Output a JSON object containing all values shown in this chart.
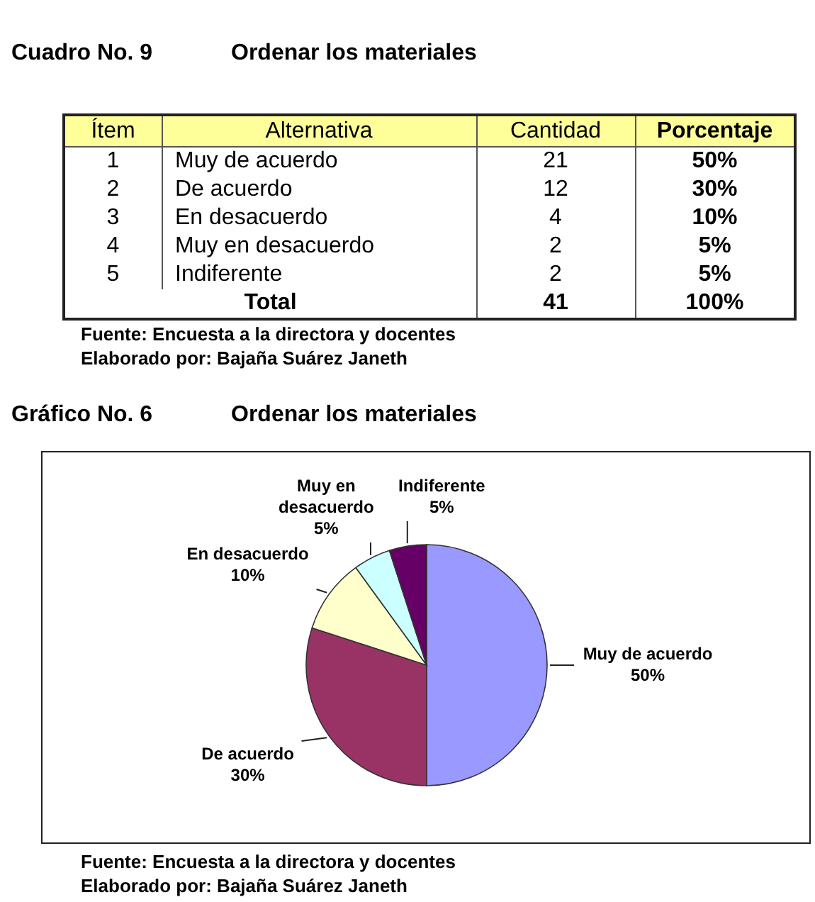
{
  "chart_data": [
    {
      "type": "other",
      "title": "Cuadro No. 9",
      "subtitle": "Ordenar los materiales",
      "xlabel": "Alternativa",
      "categories": [
        "Muy de acuerdo",
        "De acuerdo",
        "En desacuerdo",
        "Muy en desacuerdo",
        "Indiferente"
      ],
      "series": [
        {
          "name": "Ítem",
          "values": [
            1,
            2,
            3,
            4,
            5
          ]
        },
        {
          "name": "Cantidad",
          "values": [
            21,
            12,
            4,
            2,
            2
          ]
        },
        {
          "name": "Porcentaje",
          "values": [
            50,
            30,
            10,
            5,
            5
          ],
          "value_labels": [
            "50%",
            "30%",
            "10%",
            "5%",
            "5%"
          ]
        }
      ],
      "data_labels": true,
      "totals": [
        null,
        "41",
        "100%"
      ],
      "annotations": [
        "Total",
        "Fuente: Encuesta a la directora y docentes",
        "Elaborado por: Bajaña Suárez Janeth"
      ]
    },
    {
      "type": "pie",
      "title": "Gráfico No. 6",
      "subtitle": "Ordenar los materiales",
      "categories": [
        "Muy de acuerdo",
        "De acuerdo",
        "En desacuerdo",
        "Muy en desacuerdo",
        "Indiferente"
      ],
      "values": [
        50,
        30,
        10,
        5,
        5
      ],
      "colors": [
        "#9999ff",
        "#993366",
        "#ffffcc",
        "#ccffff",
        "#660066"
      ],
      "value_labels": [
        "50%",
        "30%",
        "10%",
        "5%",
        "5%"
      ],
      "annotations": [
        "Fuente: Encuesta a la directora y docentes",
        "Elaborado por: Bajaña Suárez Janeth"
      ]
    }
  ]
}
